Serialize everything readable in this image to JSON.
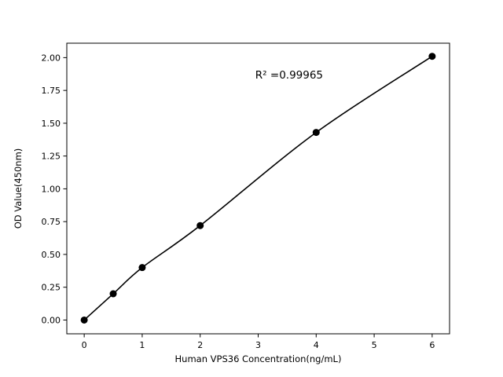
{
  "chart_data": {
    "type": "scatter",
    "x": [
      0,
      0.5,
      1,
      2,
      4,
      6
    ],
    "y": [
      0.0,
      0.2,
      0.4,
      0.72,
      1.43,
      2.01
    ],
    "title": "",
    "xlabel": "Human VPS36 Concentration(ng/mL)",
    "ylabel": "OD Value(450nm)",
    "annotation": "R² =0.99965",
    "annotation_xy": [
      2.95,
      1.84
    ],
    "xlim": [
      -0.3,
      6.3
    ],
    "ylim": [
      -0.105,
      2.11
    ],
    "xticks": [
      0,
      1,
      2,
      3,
      4,
      5,
      6
    ],
    "ytick_labels": [
      "0.00",
      "0.25",
      "0.50",
      "0.75",
      "1.00",
      "1.25",
      "1.50",
      "1.75",
      "2.00"
    ],
    "yticks": [
      0.0,
      0.25,
      0.5,
      0.75,
      1.0,
      1.25,
      1.5,
      1.75,
      2.0
    ],
    "grid": false,
    "legend": "none",
    "line_color": "#000000",
    "marker_color": "#000000",
    "background_color": "#ffffff",
    "curve": "smooth-fit-through-points"
  }
}
